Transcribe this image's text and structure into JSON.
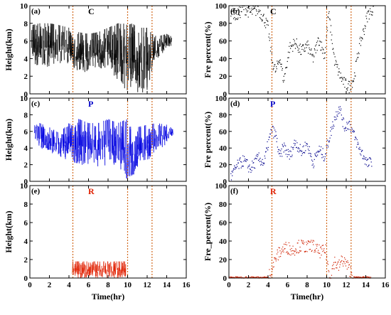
{
  "chart_data": [
    {
      "type": "scatter",
      "panel": "(a)",
      "category": "C",
      "category_color": "#000000",
      "xlabel": "",
      "ylabel": "Height(km)",
      "xlim": [
        0,
        16
      ],
      "ylim": [
        0,
        10
      ],
      "xticks": [
        "0",
        "2",
        "4",
        "6",
        "8",
        "10",
        "12",
        "14",
        "16"
      ],
      "yticks": [
        "0",
        "2",
        "4",
        "6",
        "8",
        "10"
      ],
      "series": [
        {
          "color": "#000000",
          "kind": "height-time density",
          "x": [
            0.2,
            1,
            2,
            3,
            4,
            4.5,
            5,
            6,
            7,
            8,
            9,
            9.5,
            10,
            10.5,
            11,
            11.5,
            12,
            12.5,
            13,
            14,
            14.5
          ],
          "y_top": [
            7.8,
            8,
            8,
            7.8,
            7.5,
            6,
            7,
            6.8,
            7,
            7.5,
            8,
            8,
            7.8,
            8,
            7.5,
            7.5,
            7.5,
            6.8,
            6.5,
            6.8,
            6.5
          ],
          "y_bottom": [
            3,
            3.2,
            3,
            3.2,
            3.5,
            2.5,
            2.2,
            2.5,
            2.5,
            2.8,
            1.5,
            0.5,
            0.2,
            0,
            0,
            0,
            0.5,
            2.5,
            4,
            5,
            5.5
          ]
        }
      ],
      "vlines": [
        4.4,
        10.0,
        12.5
      ]
    },
    {
      "type": "scatter",
      "panel": "(b)",
      "category": "C",
      "category_color": "#000000",
      "xlabel": "",
      "ylabel": "Fre percent(%)",
      "xlim": [
        0,
        16
      ],
      "ylim": [
        0,
        100
      ],
      "xticks": [
        "0",
        "2",
        "4",
        "6",
        "8",
        "10",
        "12",
        "14",
        "16"
      ],
      "yticks": [
        "0",
        "20",
        "40",
        "60",
        "80",
        "100"
      ],
      "series": [
        {
          "color": "#000000",
          "kind": "frequency",
          "x": [
            0.2,
            0.8,
            1.5,
            2.2,
            3,
            3.6,
            4,
            4.4,
            4.8,
            5.2,
            5.6,
            6.2,
            6.8,
            7.4,
            8,
            8.6,
            9.2,
            9.8,
            10.2,
            10.8,
            11.3,
            11.8,
            12.3,
            12.8,
            13.3,
            13.8,
            14.2,
            14.8
          ],
          "y": [
            95,
            88,
            98,
            92,
            96,
            85,
            75,
            38,
            25,
            42,
            15,
            52,
            58,
            48,
            55,
            40,
            62,
            44,
            92,
            38,
            22,
            12,
            8,
            18,
            52,
            72,
            90,
            98
          ]
        }
      ],
      "vlines": [
        4.4,
        10.0,
        12.5
      ]
    },
    {
      "type": "scatter",
      "panel": "(c)",
      "category": "P",
      "category_color": "#0000c8",
      "xlabel": "",
      "ylabel": "Height(km)",
      "xlim": [
        0,
        16
      ],
      "ylim": [
        0,
        10
      ],
      "xticks": [
        "0",
        "2",
        "4",
        "6",
        "8",
        "10",
        "12",
        "14",
        "16"
      ],
      "yticks": [
        "0",
        "2",
        "4",
        "6",
        "8",
        "10"
      ],
      "series": [
        {
          "color": "#0000e0",
          "kind": "height-time density",
          "x": [
            0.5,
            1,
            2,
            3,
            4,
            4.6,
            5,
            6,
            7,
            8,
            9,
            10,
            10.5,
            11,
            12,
            13,
            14,
            14.6
          ],
          "y_top": [
            6.8,
            7,
            6.5,
            5.8,
            7,
            6.5,
            7.5,
            7,
            7,
            7.5,
            7,
            7.5,
            6,
            6.5,
            6.8,
            7,
            6.8,
            6.5
          ],
          "y_bottom": [
            5,
            4,
            3.5,
            3,
            2.5,
            1.8,
            1.8,
            1.8,
            1.8,
            1.8,
            1.8,
            0,
            0.5,
            1.5,
            2.5,
            3.5,
            4.5,
            5.5
          ]
        }
      ],
      "vlines": [
        4.4,
        10.0,
        12.5
      ]
    },
    {
      "type": "scatter",
      "panel": "(d)",
      "category": "P",
      "category_color": "#0000c8",
      "xlabel": "",
      "ylabel": "Fre percent(%)",
      "xlim": [
        0,
        16
      ],
      "ylim": [
        0,
        100
      ],
      "xticks": [
        "0",
        "2",
        "4",
        "6",
        "8",
        "10",
        "12",
        "14",
        "16"
      ],
      "yticks": [
        "0",
        "20",
        "40",
        "60",
        "80",
        "100"
      ],
      "series": [
        {
          "color": "#00008b",
          "kind": "frequency",
          "x": [
            0.2,
            0.8,
            1.5,
            2.2,
            3,
            3.6,
            4,
            4.4,
            4.8,
            5.2,
            5.6,
            6.2,
            6.8,
            7.4,
            8,
            8.6,
            9.2,
            9.8,
            10.2,
            10.8,
            11.3,
            11.8,
            12.3,
            12.8,
            13.3,
            13.8,
            14.2,
            14.6
          ],
          "y": [
            5,
            18,
            25,
            15,
            28,
            22,
            45,
            62,
            55,
            28,
            42,
            30,
            48,
            35,
            45,
            22,
            38,
            30,
            50,
            75,
            90,
            65,
            70,
            55,
            40,
            30,
            20,
            25
          ]
        }
      ],
      "vlines": [
        4.4,
        10.0,
        12.5
      ]
    },
    {
      "type": "scatter",
      "panel": "(e)",
      "category": "R",
      "category_color": "#e02000",
      "xlabel": "Time(hr)",
      "ylabel": "Height(km)",
      "xlim": [
        0,
        16
      ],
      "ylim": [
        0,
        10
      ],
      "xticks": [
        "0",
        "2",
        "4",
        "6",
        "8",
        "10",
        "12",
        "14",
        "16"
      ],
      "yticks": [
        "0",
        "2",
        "4",
        "6",
        "8",
        "10"
      ],
      "series": [
        {
          "color": "#e02000",
          "kind": "height-time density",
          "x": [
            4.4,
            5,
            6,
            7,
            8,
            9,
            9.8
          ],
          "y_top": [
            1.8,
            1.8,
            1.8,
            1.8,
            1.8,
            1.8,
            1.8
          ],
          "y_bottom": [
            0,
            0,
            0,
            0,
            0,
            0,
            0
          ]
        }
      ],
      "vlines": [
        4.4,
        10.0,
        12.5
      ]
    },
    {
      "type": "scatter",
      "panel": "(f)",
      "category": "R",
      "category_color": "#e02000",
      "xlabel": "Time(hr)",
      "ylabel": "Fre_percent(%)",
      "xlim": [
        0,
        16
      ],
      "ylim": [
        0,
        100
      ],
      "xticks": [
        "0",
        "2",
        "4",
        "6",
        "8",
        "10",
        "12",
        "14",
        "16"
      ],
      "yticks": [
        "0",
        "20",
        "40",
        "60",
        "80",
        "100"
      ],
      "series": [
        {
          "color": "#d02000",
          "kind": "frequency",
          "x": [
            0,
            1,
            2,
            3,
            4,
            4.4,
            4.8,
            5.2,
            5.6,
            6,
            6.5,
            7,
            7.5,
            8,
            8.5,
            9,
            9.5,
            9.9,
            10.3,
            10.8,
            11.2,
            11.6,
            12,
            12.4,
            12.8,
            13.5,
            14.5
          ],
          "y": [
            0,
            0,
            0,
            0,
            0,
            10,
            22,
            28,
            32,
            33,
            30,
            34,
            35,
            33,
            36,
            30,
            28,
            30,
            0,
            18,
            12,
            20,
            15,
            8,
            0,
            0,
            0
          ]
        }
      ],
      "vlines": [
        4.4,
        10.0,
        12.5
      ]
    }
  ]
}
